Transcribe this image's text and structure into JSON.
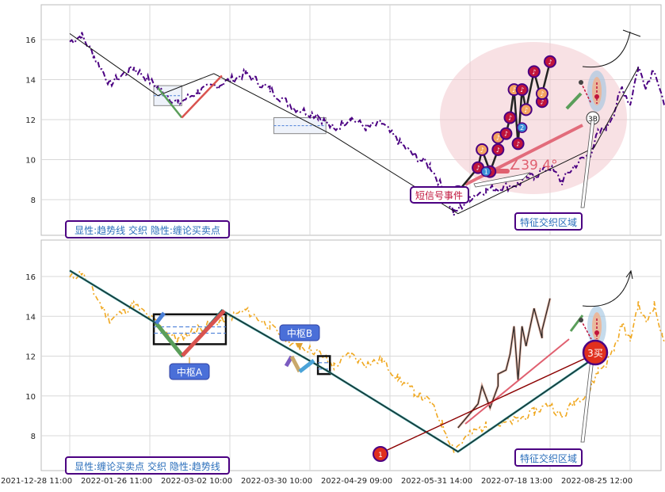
{
  "chart_data": [
    {
      "type": "line",
      "panel": "top",
      "ylim": [
        6.2,
        17.8
      ],
      "y_ticks": [
        8,
        10,
        12,
        14,
        16
      ],
      "caption": "显性:趋势线 交织 隐性:缠论买卖点",
      "annotations": {
        "short_signal": "短信号事件",
        "feature_zone": "特征交织区域",
        "angle": "∠39.4°",
        "marker_3b": "3B"
      },
      "price_anchors": [
        [
          0,
          15.9
        ],
        [
          3,
          16.2
        ],
        [
          6,
          15.2
        ],
        [
          10,
          13.8
        ],
        [
          16,
          14.6
        ],
        [
          22,
          13.6
        ],
        [
          27,
          12.8
        ],
        [
          32,
          13.4
        ],
        [
          38,
          13.8
        ],
        [
          44,
          14.3
        ],
        [
          50,
          13.5
        ],
        [
          56,
          12.6
        ],
        [
          62,
          12.2
        ],
        [
          66,
          11.5
        ],
        [
          70,
          12.1
        ],
        [
          74,
          11.6
        ],
        [
          78,
          11.8
        ],
        [
          82,
          10.9
        ],
        [
          86,
          10.2
        ],
        [
          90,
          9.7
        ],
        [
          93,
          8.6
        ],
        [
          96,
          7.3
        ],
        [
          100,
          8.1
        ],
        [
          104,
          8.5
        ],
        [
          108,
          8.6
        ],
        [
          112,
          8.8
        ],
        [
          116,
          9.2
        ],
        [
          120,
          9.6
        ],
        [
          123,
          8.9
        ],
        [
          126,
          9.7
        ],
        [
          130,
          10.3
        ],
        [
          132,
          11.3
        ],
        [
          134,
          11.6
        ],
        [
          136,
          12.4
        ],
        [
          138,
          13.6
        ],
        [
          140,
          12.8
        ],
        [
          142,
          14.6
        ],
        [
          144,
          13.7
        ],
        [
          146,
          14.6
        ],
        [
          148,
          13.0
        ],
        [
          150,
          12.6
        ]
      ],
      "trend_line": [
        [
          0,
          16.3
        ],
        [
          22,
          13.2
        ],
        [
          36,
          14.3
        ],
        [
          65,
          11.3
        ],
        [
          97,
          7.3
        ],
        [
          131,
          10.6
        ],
        [
          142,
          14.6
        ]
      ],
      "legs": [
        {
          "from": [
            22,
            13.6
          ],
          "to": [
            28,
            12.1
          ],
          "color": "#5a9e5a"
        },
        {
          "from": [
            28,
            12.1
          ],
          "to": [
            38,
            14.2
          ],
          "color": "#d9534f"
        }
      ],
      "boxes": [
        [
          21,
          28,
          12.7,
          13.7
        ],
        [
          51,
          64,
          11.3,
          12.1
        ]
      ],
      "bsp_markers": [
        {
          "x": 97,
          "y": 8.4,
          "label": "♪"
        },
        {
          "x": 102,
          "y": 9.6,
          "label": "♪"
        },
        {
          "x": 103,
          "y": 10.5,
          "label": "♪"
        },
        {
          "x": 105,
          "y": 9.4,
          "label": "♪"
        },
        {
          "x": 107,
          "y": 10.5,
          "label": "♪"
        },
        {
          "x": 107,
          "y": 11.1,
          "label": "♪"
        },
        {
          "x": 109,
          "y": 11.3,
          "label": "♪"
        },
        {
          "x": 110,
          "y": 12.1,
          "label": "♪"
        },
        {
          "x": 111,
          "y": 13.5,
          "label": "♪"
        },
        {
          "x": 112,
          "y": 10.8,
          "label": "♪"
        },
        {
          "x": 113,
          "y": 13.5,
          "label": "♪"
        },
        {
          "x": 114,
          "y": 12.5,
          "label": "♪"
        },
        {
          "x": 116,
          "y": 14.4,
          "label": "♪"
        },
        {
          "x": 118,
          "y": 12.9,
          "label": "♪"
        },
        {
          "x": 118,
          "y": 13.3,
          "label": "♪"
        },
        {
          "x": 120,
          "y": 14.9,
          "label": "♪"
        }
      ],
      "bsp_blue": [
        {
          "x": 104,
          "y": 9.4,
          "label": "1"
        },
        {
          "x": 113,
          "y": 11.6,
          "label": "2"
        }
      ]
    },
    {
      "type": "line",
      "panel": "bottom",
      "ylim": [
        6.2,
        17.8
      ],
      "y_ticks": [
        8,
        10,
        12,
        14,
        16
      ],
      "caption": "显性:缠论买卖点 交织 隐性:趋势线",
      "annotations": {
        "zs_a": "中枢A",
        "zs_b": "中枢B",
        "feature_zone": "特征交织区域",
        "buy1": "1",
        "buy3": "3买"
      },
      "bi_path": [
        [
          0,
          16.3
        ],
        [
          22,
          13.6
        ],
        [
          28,
          12.0
        ],
        [
          38,
          14.3
        ],
        [
          64,
          11.3
        ],
        [
          97,
          7.2
        ],
        [
          131,
          11.9
        ]
      ],
      "zs_boxes": [
        [
          21,
          39,
          12.6,
          14.1
        ],
        [
          62,
          65,
          11.1,
          12.0
        ]
      ],
      "x_ticks": [
        "2021-12-28 11:00",
        "2022-01-26 11:00",
        "2022-03-02 10:00",
        "2022-03-30 10:00",
        "2022-04-29 09:00",
        "2022-05-31 14:00",
        "2022-07-18 13:00",
        "2022-08-25 12:00"
      ]
    }
  ],
  "colors": {
    "price_top": "#4b0082",
    "price_bottom": "#f0a820",
    "trend": "#111111",
    "marker_fill": "#c0143c",
    "marker_ring": "#4b0082",
    "blue_marker": "#3a8fd8",
    "zone_fill": "#f2c8ce",
    "caption_border": "#4b0082",
    "caption_text": "#2a6ebb",
    "zs_label_bg": "#4a6fd8",
    "buy3": "#e0301e"
  }
}
